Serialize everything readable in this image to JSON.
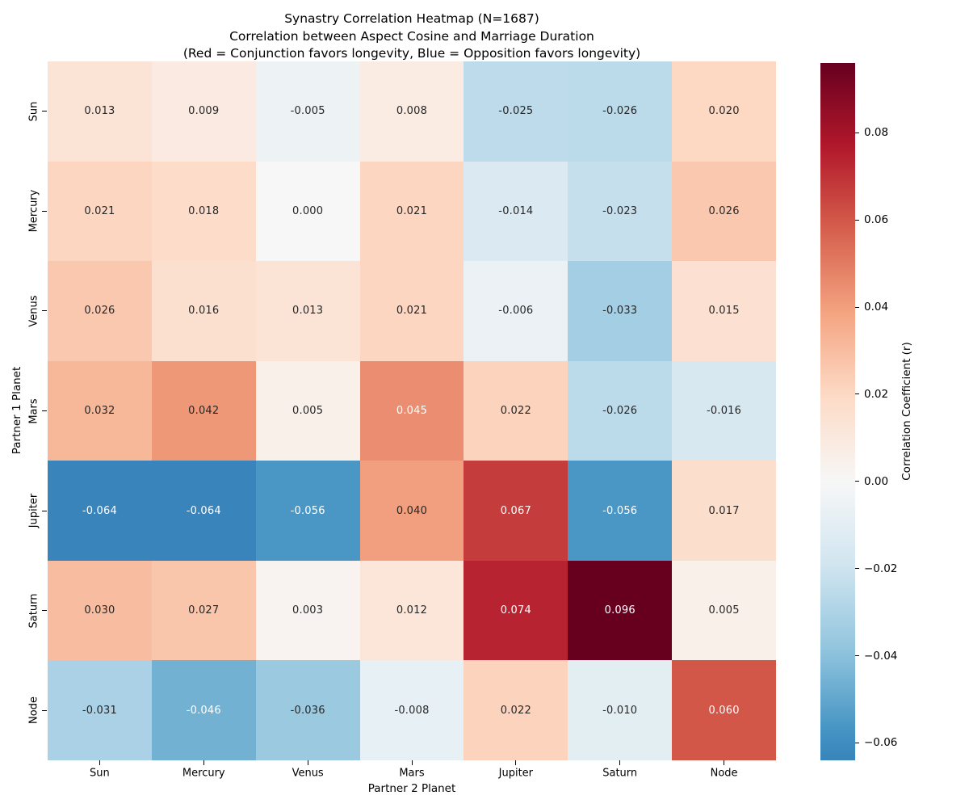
{
  "chart_data": {
    "type": "heatmap",
    "title": "Synastry Correlation Heatmap (N=1687)",
    "subtitle": "Correlation between Aspect Cosine and Marriage Duration",
    "subtitle2": "(Red = Conjunction favors longevity, Blue = Opposition favors longevity)",
    "xlabel": "Partner 2 Planet",
    "ylabel": "Partner 1 Planet",
    "x_categories": [
      "Sun",
      "Mercury",
      "Venus",
      "Mars",
      "Jupiter",
      "Saturn",
      "Node"
    ],
    "y_categories": [
      "Sun",
      "Mercury",
      "Venus",
      "Mars",
      "Jupiter",
      "Saturn",
      "Node"
    ],
    "values": [
      [
        0.013,
        0.009,
        -0.005,
        0.008,
        -0.025,
        -0.026,
        0.02
      ],
      [
        0.021,
        0.018,
        0.0,
        0.021,
        -0.014,
        -0.023,
        0.026
      ],
      [
        0.026,
        0.016,
        0.013,
        0.021,
        -0.006,
        -0.033,
        0.015
      ],
      [
        0.032,
        0.042,
        0.005,
        0.045,
        0.022,
        -0.026,
        -0.016
      ],
      [
        -0.064,
        -0.064,
        -0.056,
        0.04,
        0.067,
        -0.056,
        0.017
      ],
      [
        0.03,
        0.027,
        0.003,
        0.012,
        0.074,
        0.096,
        0.005
      ],
      [
        -0.031,
        -0.046,
        -0.036,
        -0.008,
        0.022,
        -0.01,
        0.06
      ]
    ],
    "value_format_decimals": 3,
    "grid": false,
    "legend_position": "right-colorbar",
    "colormap": {
      "name": "RdBu_r",
      "stops": [
        "#053061",
        "#2166ac",
        "#4393c3",
        "#92c5de",
        "#d1e5f0",
        "#f7f7f7",
        "#fddbc7",
        "#f4a582",
        "#d6604d",
        "#b2182b",
        "#67001f"
      ]
    },
    "norm": {
      "center": 0,
      "vmin": -0.064,
      "vmax": 0.096,
      "norm_min": -0.096,
      "norm_max": 0.096
    },
    "annotation_text_colors": {
      "dark": "#262626",
      "light": "#ffffff",
      "luminance_threshold": 0.408
    },
    "colorbar": {
      "label": "Correlation Coefficient (r)",
      "tick_values": [
        0.08,
        0.06,
        0.04,
        0.02,
        0.0,
        -0.02,
        -0.04,
        -0.06
      ],
      "tick_labels": [
        "0.08",
        "0.06",
        "0.04",
        "0.02",
        "0.00",
        "−0.02",
        "−0.04",
        "−0.06"
      ]
    }
  }
}
